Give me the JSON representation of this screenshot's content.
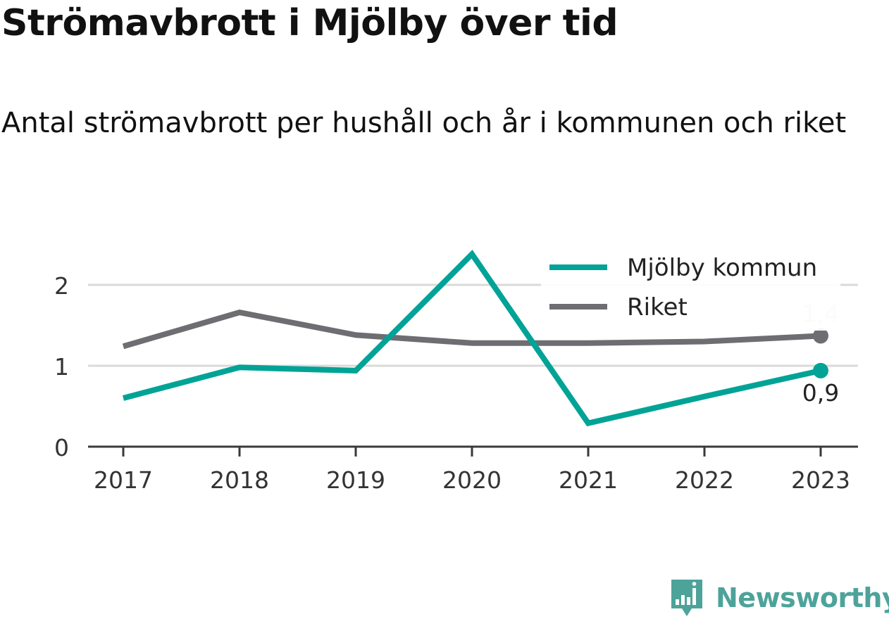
{
  "title": "Strömavbrott i Mjölby över tid",
  "subtitle": "Antal strömavbrott per hushåll och år i kommunen och riket",
  "chart_data": {
    "type": "line",
    "title": "Strömavbrott i Mjölby över tid",
    "subtitle": "Antal strömavbrott per hushåll och år i kommunen och riket",
    "xlabel": "",
    "ylabel": "",
    "categories": [
      "2017",
      "2018",
      "2019",
      "2020",
      "2021",
      "2022",
      "2023"
    ],
    "y_ticks": [
      0,
      1,
      2
    ],
    "y_tick_labels": [
      "0",
      "1",
      "2"
    ],
    "ylim": [
      0,
      2.3
    ],
    "grid": "horizontal",
    "legend_position": "top-right",
    "series": [
      {
        "name": "Mjölby kommun",
        "color": "#00a396",
        "values": [
          0.6,
          0.98,
          0.94,
          2.38,
          0.29,
          0.62,
          0.94
        ],
        "end_label": "0,9"
      },
      {
        "name": "Riket",
        "color": "#6d6d72",
        "values": [
          1.24,
          1.66,
          1.38,
          1.28,
          1.28,
          1.3,
          1.37
        ],
        "end_label": "1,4"
      }
    ]
  },
  "logo": {
    "text": "Newsworthy",
    "icon": "bar-chart-icon",
    "color": "#4da39a"
  }
}
